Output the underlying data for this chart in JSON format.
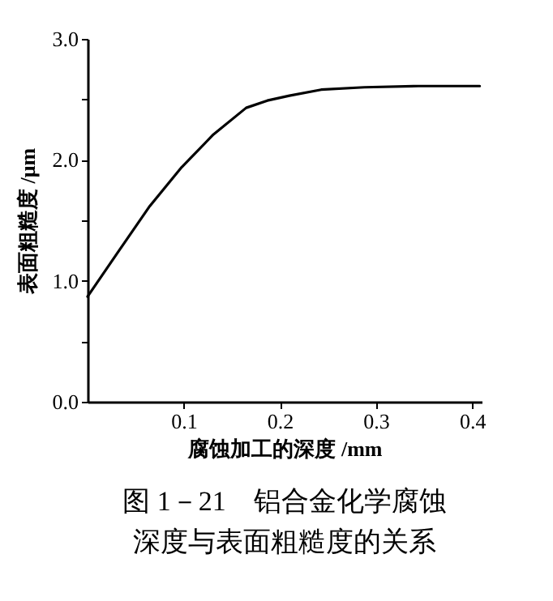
{
  "chart_data": {
    "type": "line",
    "title": "图 1－21　铝合金化学腐蚀",
    "subtitle": "深度与表面粗糙度的关系",
    "xlabel": "腐蚀加工的深度 /mm",
    "ylabel": "表面粗糙度 /μm",
    "x": [
      0,
      0.031,
      0.064,
      0.098,
      0.131,
      0.165,
      0.187,
      0.21,
      0.243,
      0.288,
      0.344,
      0.408
    ],
    "series": [
      {
        "color": "#000000",
        "values": [
          0.87,
          1.23,
          1.61,
          1.94,
          2.21,
          2.43,
          2.49,
          2.53,
          2.58,
          2.6,
          2.61,
          2.61
        ]
      }
    ],
    "xlim": [
      0,
      0.41
    ],
    "xticks": [
      0.1,
      0.2,
      0.3,
      0.4
    ],
    "ylim": [
      0,
      3
    ],
    "yticks": [
      {
        "value": 0,
        "label": "0.0"
      },
      {
        "value": 0.5,
        "label": null
      },
      {
        "value": 1,
        "label": "1.0"
      },
      {
        "value": 1.5,
        "label": null
      },
      {
        "value": 2,
        "label": "2.0"
      },
      {
        "value": 2.5,
        "label": null
      },
      {
        "value": 3,
        "label": "3.0"
      }
    ],
    "grid": false,
    "marker": "none",
    "line_style": "solid"
  }
}
